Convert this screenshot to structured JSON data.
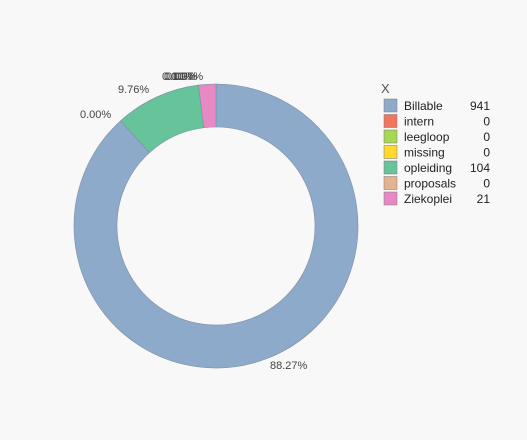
{
  "chart_data": {
    "type": "pie",
    "style": "donut",
    "legend": {
      "title": "X",
      "position": "right"
    },
    "slices": [
      {
        "label": "Billable",
        "value": 941,
        "percent_label": "88.27%",
        "color": "#8eaacb"
      },
      {
        "label": "intern",
        "value": 0,
        "percent_label": "0.00%",
        "color": "#f2765f"
      },
      {
        "label": "leegloop",
        "value": 0,
        "percent_label": "",
        "color": "#a6d854"
      },
      {
        "label": "missing",
        "value": 0,
        "percent_label": "",
        "color": "#ffd92f"
      },
      {
        "label": "opleiding",
        "value": 104,
        "percent_label": "9.76%",
        "color": "#66c39a"
      },
      {
        "label": "proposals",
        "value": 0,
        "percent_label": "0.00%",
        "color": "#e5b48f"
      },
      {
        "label": "Ziekoplei",
        "value": 21,
        "percent_label": "1.97%",
        "color": "#e78ac3"
      }
    ],
    "extra_labels": [
      {
        "text": "0.00%"
      },
      {
        "text": "0.00%"
      }
    ]
  }
}
